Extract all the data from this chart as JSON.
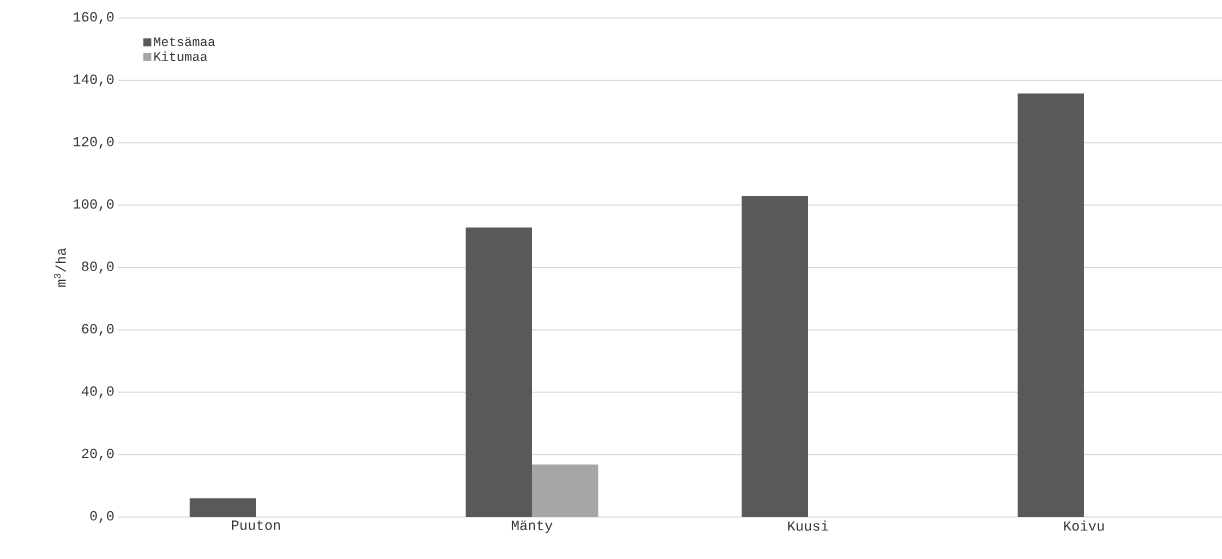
{
  "chart_data": {
    "type": "bar",
    "ylabel": "m$^{3}$/ha",
    "categories": [
      "Puuton",
      "Mänty",
      "Kuusi",
      "Koivu"
    ],
    "series": [
      {
        "name": "Metsämaa",
        "color": "#595959",
        "values": [
          6.0,
          92.8,
          102.9,
          135.8
        ]
      },
      {
        "name": "Kitumaa",
        "color": "#a6a6a6",
        "values": [
          0,
          16.8,
          0,
          0
        ]
      }
    ],
    "ylim": [
      0,
      160
    ],
    "yticks": [
      {
        "value": 0,
        "label": "0,0"
      },
      {
        "value": 20,
        "label": "20,0"
      },
      {
        "value": 40,
        "label": "40,0"
      },
      {
        "value": 60,
        "label": "60,0"
      },
      {
        "value": 80,
        "label": "80,0"
      },
      {
        "value": 100,
        "label": "100,0"
      },
      {
        "value": 120,
        "label": "120,0"
      },
      {
        "value": 140,
        "label": "140,0"
      },
      {
        "value": 160,
        "label": "160,0"
      }
    ],
    "grid": "y",
    "legend": "top left"
  }
}
